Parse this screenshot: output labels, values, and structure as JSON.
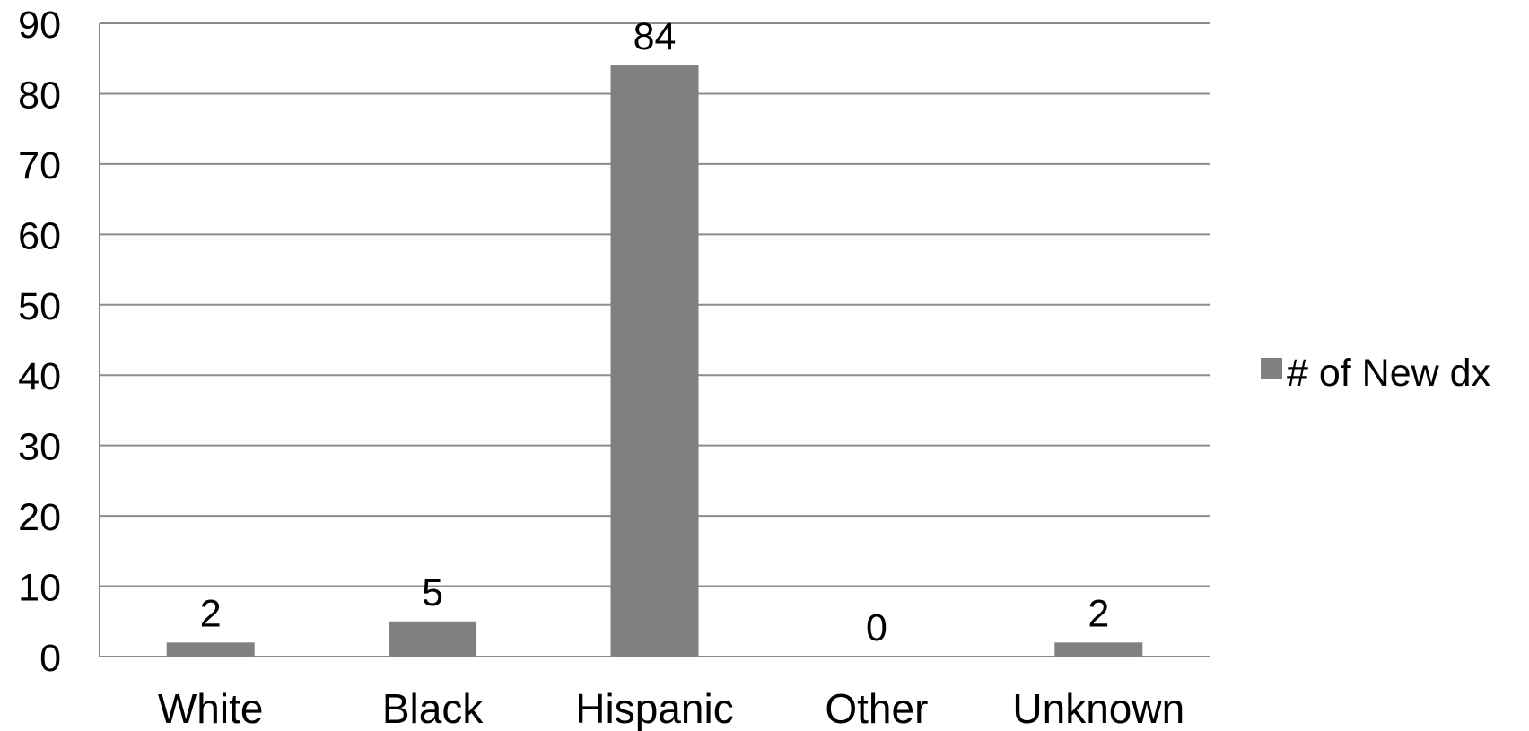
{
  "chart_data": {
    "type": "bar",
    "categories": [
      "White",
      "Black",
      "Hispanic",
      "Other",
      "Unknown"
    ],
    "series": [
      {
        "name": "# of New dx",
        "values": [
          2,
          5,
          84,
          0,
          2
        ]
      }
    ],
    "data_labels": [
      "2",
      "5",
      "84",
      "0",
      "2"
    ],
    "title": "",
    "xlabel": "",
    "ylabel": "",
    "ylim": [
      0,
      90
    ],
    "yticks": [
      "0",
      "10",
      "20",
      "30",
      "40",
      "50",
      "60",
      "70",
      "80",
      "90"
    ],
    "grid": true,
    "legend_position": "right",
    "colors": {
      "bar": "#808080",
      "grid": "#8c8c8c",
      "axis": "#8c8c8c",
      "text": "#000000"
    }
  }
}
